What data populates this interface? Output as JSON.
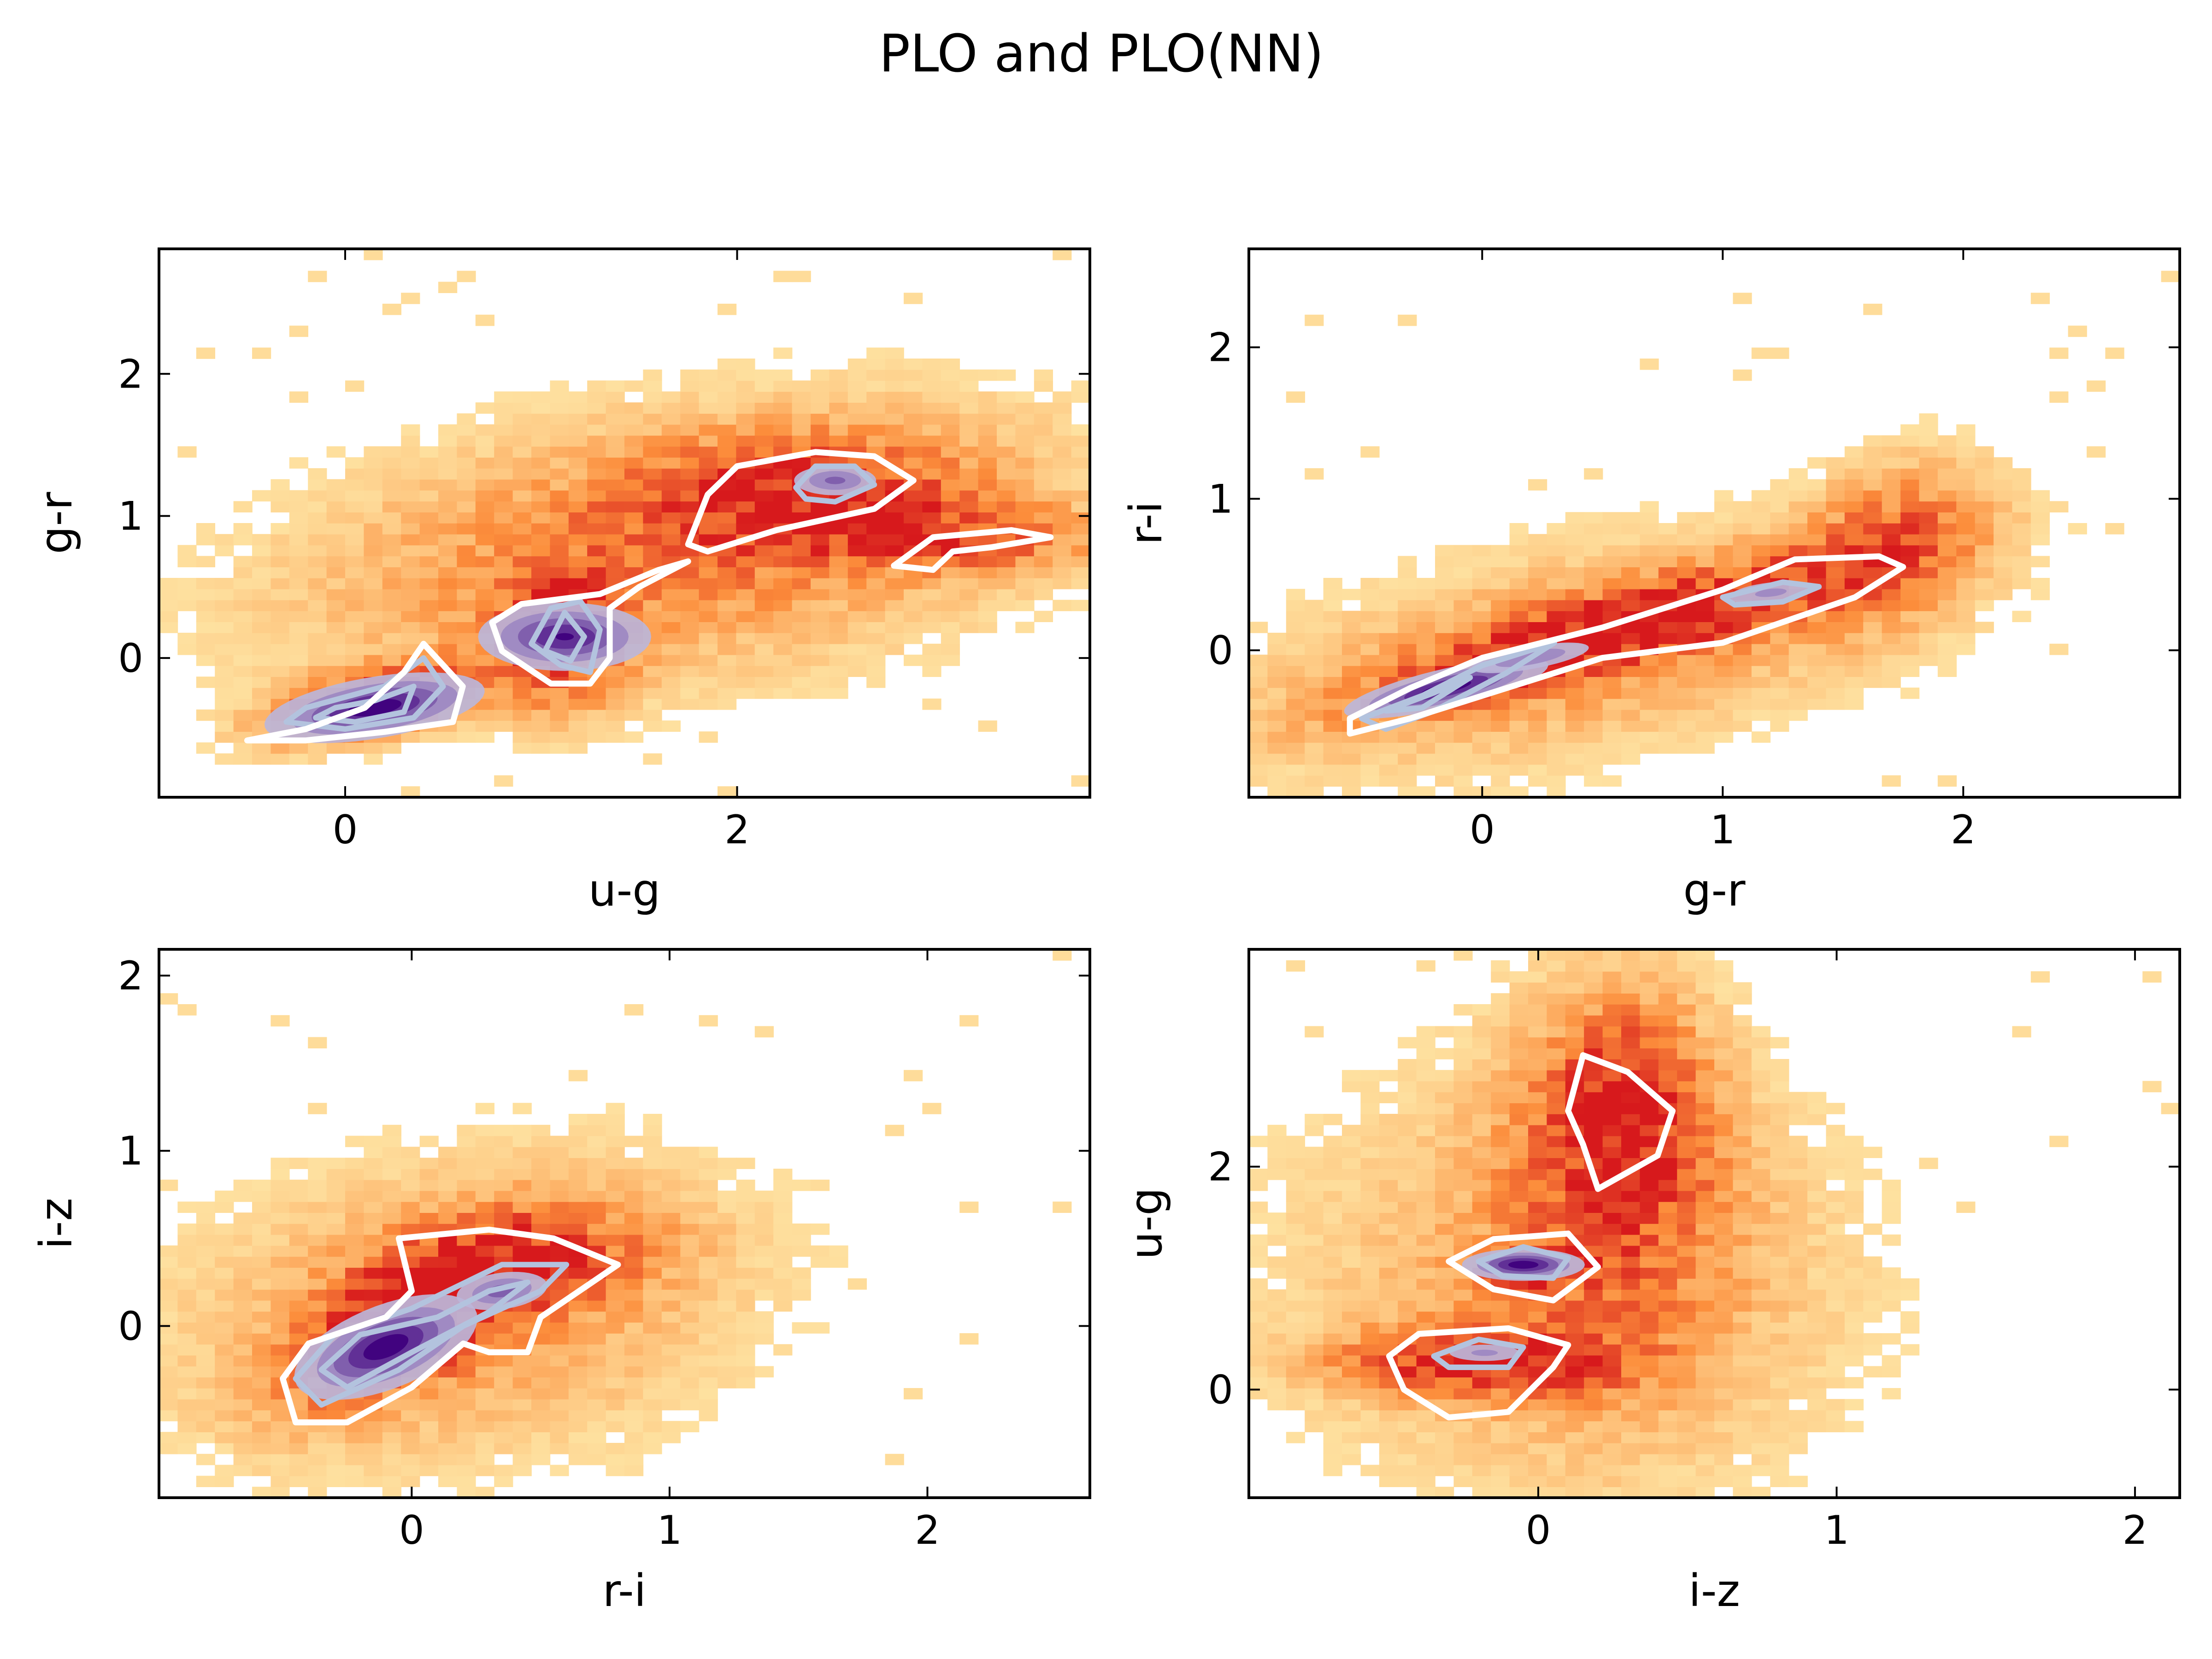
{
  "title": "PLO and PLO(NN)",
  "colors": {
    "histogram_low": "#fff5b8",
    "histogram_mid": "#fc8d3b",
    "histogram_high": "#d7191c",
    "density_fill_low": "#dbe3f0",
    "density_fill_high": "#3f007d",
    "contour_outer": "#ffffff",
    "contour_inner": "#b3c3de"
  },
  "chart_data": [
    {
      "type": "heatmap",
      "xlabel": "u-g",
      "ylabel": "g-r",
      "xlim": [
        -0.95,
        3.8
      ],
      "ylim": [
        -0.98,
        2.88
      ],
      "xticks": [
        0,
        2
      ],
      "yticks": [
        0,
        1,
        2
      ],
      "clusters": [
        {
          "x": 0.15,
          "y": -0.3,
          "sx": 0.35,
          "sy": 0.18,
          "rho": 0.55,
          "w": 0.9
        },
        {
          "x": 1.1,
          "y": 0.15,
          "sx": 0.2,
          "sy": 0.3,
          "rho": 0.0,
          "w": 0.9
        },
        {
          "x": 2.3,
          "y": 1.15,
          "sx": 0.5,
          "sy": 0.25,
          "rho": 0.1,
          "w": 0.8
        },
        {
          "x": 3.1,
          "y": 0.85,
          "sx": 0.45,
          "sy": 0.15,
          "rho": 0.0,
          "w": 0.6
        },
        {
          "x": 1.7,
          "y": 0.8,
          "sx": 1.2,
          "sy": 0.6,
          "rho": 0.35,
          "w": 0.45
        }
      ],
      "outer_contours": [
        [
          [
            -0.5,
            -0.58
          ],
          [
            -0.2,
            -0.5
          ],
          [
            0.1,
            -0.35
          ],
          [
            0.3,
            -0.1
          ],
          [
            0.4,
            0.1
          ],
          [
            0.6,
            -0.2
          ],
          [
            0.55,
            -0.45
          ],
          [
            0.2,
            -0.52
          ],
          [
            -0.2,
            -0.58
          ]
        ],
        [
          [
            0.75,
            0.25
          ],
          [
            0.9,
            0.38
          ],
          [
            1.3,
            0.45
          ],
          [
            1.6,
            0.62
          ],
          [
            1.75,
            0.68
          ],
          [
            1.5,
            0.5
          ],
          [
            1.35,
            0.35
          ],
          [
            1.35,
            0.0
          ],
          [
            1.25,
            -0.18
          ],
          [
            1.05,
            -0.18
          ],
          [
            0.8,
            0.05
          ]
        ],
        [
          [
            1.75,
            0.8
          ],
          [
            1.85,
            1.15
          ],
          [
            2.0,
            1.35
          ],
          [
            2.4,
            1.45
          ],
          [
            2.7,
            1.42
          ],
          [
            2.9,
            1.25
          ],
          [
            2.7,
            1.05
          ],
          [
            2.2,
            0.9
          ],
          [
            1.85,
            0.75
          ]
        ],
        [
          [
            2.8,
            0.65
          ],
          [
            3.0,
            0.85
          ],
          [
            3.4,
            0.9
          ],
          [
            3.6,
            0.85
          ],
          [
            3.3,
            0.78
          ],
          [
            3.1,
            0.75
          ],
          [
            3.0,
            0.62
          ]
        ]
      ],
      "inner_contours": [
        [
          [
            -0.3,
            -0.45
          ],
          [
            0.0,
            -0.5
          ],
          [
            0.35,
            -0.42
          ],
          [
            0.5,
            -0.2
          ],
          [
            0.4,
            0.0
          ],
          [
            0.2,
            -0.2
          ],
          [
            -0.2,
            -0.35
          ]
        ],
        [
          [
            -0.15,
            -0.42
          ],
          [
            0.05,
            -0.45
          ],
          [
            0.3,
            -0.38
          ],
          [
            0.35,
            -0.2
          ],
          [
            0.15,
            -0.3
          ],
          [
            -0.05,
            -0.35
          ]
        ],
        [
          [
            0.95,
            0.1
          ],
          [
            1.05,
            0.35
          ],
          [
            1.2,
            0.4
          ],
          [
            1.3,
            0.2
          ],
          [
            1.25,
            -0.1
          ],
          [
            1.1,
            -0.05
          ]
        ],
        [
          [
            1.02,
            0.05
          ],
          [
            1.12,
            0.32
          ],
          [
            1.22,
            0.15
          ],
          [
            1.15,
            -0.02
          ]
        ],
        [
          [
            2.3,
            1.2
          ],
          [
            2.4,
            1.35
          ],
          [
            2.6,
            1.35
          ],
          [
            2.7,
            1.22
          ],
          [
            2.5,
            1.1
          ],
          [
            2.35,
            1.12
          ]
        ]
      ],
      "density_cores": [
        {
          "x": 0.15,
          "y": -0.35,
          "sx": 0.28,
          "sy": 0.12,
          "rho": 0.5,
          "w": 1.0
        },
        {
          "x": 1.12,
          "y": 0.15,
          "sx": 0.12,
          "sy": 0.22,
          "rho": 0.0,
          "w": 0.9
        },
        {
          "x": 2.5,
          "y": 1.25,
          "sx": 0.12,
          "sy": 0.06,
          "rho": 0.0,
          "w": 0.55
        }
      ]
    },
    {
      "type": "heatmap",
      "xlabel": "g-r",
      "ylabel": "r-i",
      "xlim": [
        -0.97,
        2.9
      ],
      "ylim": [
        -0.97,
        2.65
      ],
      "xticks": [
        0,
        1,
        2
      ],
      "yticks": [
        0,
        1,
        2
      ],
      "clusters": [
        {
          "x": 0.6,
          "y": 0.15,
          "sx": 0.65,
          "sy": 0.32,
          "rho": 0.85,
          "w": 1.0
        },
        {
          "x": 1.7,
          "y": 0.7,
          "sx": 0.25,
          "sy": 0.35,
          "rho": 0.3,
          "w": 0.5
        },
        {
          "x": 0.4,
          "y": 0.0,
          "sx": 0.9,
          "sy": 0.5,
          "rho": 0.5,
          "w": 0.3
        }
      ],
      "outer_contours": [
        [
          [
            -0.55,
            -0.45
          ],
          [
            -0.3,
            -0.25
          ],
          [
            0.0,
            -0.05
          ],
          [
            0.5,
            0.15
          ],
          [
            1.0,
            0.4
          ],
          [
            1.3,
            0.6
          ],
          [
            1.65,
            0.62
          ],
          [
            1.75,
            0.55
          ],
          [
            1.55,
            0.35
          ],
          [
            1.0,
            0.05
          ],
          [
            0.5,
            -0.05
          ],
          [
            0.1,
            -0.25
          ],
          [
            -0.3,
            -0.45
          ],
          [
            -0.55,
            -0.55
          ]
        ]
      ],
      "inner_contours": [
        [
          [
            -0.5,
            -0.45
          ],
          [
            -0.25,
            -0.3
          ],
          [
            0.0,
            -0.1
          ],
          [
            0.3,
            0.05
          ],
          [
            0.1,
            -0.15
          ],
          [
            -0.2,
            -0.4
          ],
          [
            -0.4,
            -0.52
          ]
        ],
        [
          [
            1.0,
            0.35
          ],
          [
            1.25,
            0.45
          ],
          [
            1.4,
            0.42
          ],
          [
            1.25,
            0.32
          ],
          [
            1.05,
            0.3
          ]
        ],
        [
          [
            -0.4,
            -0.4
          ],
          [
            -0.2,
            -0.28
          ],
          [
            -0.05,
            -0.18
          ],
          [
            -0.25,
            -0.38
          ]
        ]
      ],
      "density_cores": [
        {
          "x": -0.15,
          "y": -0.25,
          "sx": 0.22,
          "sy": 0.1,
          "rho": 0.8,
          "w": 1.0
        },
        {
          "x": 0.2,
          "y": -0.05,
          "sx": 0.15,
          "sy": 0.06,
          "rho": 0.7,
          "w": 0.5
        },
        {
          "x": 1.2,
          "y": 0.38,
          "sx": 0.12,
          "sy": 0.05,
          "rho": 0.4,
          "w": 0.35
        }
      ]
    },
    {
      "type": "heatmap",
      "xlabel": "r-i",
      "ylabel": "i-z",
      "xlim": [
        -0.98,
        2.63
      ],
      "ylim": [
        -0.98,
        2.15
      ],
      "xticks": [
        0,
        1,
        2
      ],
      "yticks": [
        0,
        1,
        2
      ],
      "clusters": [
        {
          "x": 0.0,
          "y": 0.05,
          "sx": 0.3,
          "sy": 0.3,
          "rho": 0.65,
          "w": 1.0
        },
        {
          "x": 0.4,
          "y": 0.35,
          "sx": 0.35,
          "sy": 0.2,
          "rho": 0.3,
          "w": 0.6
        },
        {
          "x": 0.2,
          "y": 0.1,
          "sx": 0.7,
          "sy": 0.55,
          "rho": 0.2,
          "w": 0.3
        }
      ],
      "outer_contours": [
        [
          [
            -0.5,
            -0.3
          ],
          [
            -0.4,
            -0.1
          ],
          [
            -0.1,
            0.05
          ],
          [
            0.0,
            0.2
          ],
          [
            -0.05,
            0.5
          ],
          [
            0.3,
            0.55
          ],
          [
            0.55,
            0.5
          ],
          [
            0.8,
            0.35
          ],
          [
            0.6,
            0.15
          ],
          [
            0.5,
            0.05
          ],
          [
            0.45,
            -0.15
          ],
          [
            0.3,
            -0.15
          ],
          [
            0.2,
            -0.1
          ],
          [
            0.0,
            -0.35
          ],
          [
            -0.25,
            -0.55
          ],
          [
            -0.45,
            -0.55
          ]
        ]
      ],
      "inner_contours": [
        [
          [
            -0.45,
            -0.3
          ],
          [
            -0.3,
            -0.05
          ],
          [
            0.0,
            0.1
          ],
          [
            0.35,
            0.35
          ],
          [
            0.6,
            0.35
          ],
          [
            0.5,
            0.2
          ],
          [
            0.2,
            0.0
          ],
          [
            -0.05,
            -0.25
          ],
          [
            -0.35,
            -0.45
          ]
        ],
        [
          [
            -0.35,
            -0.25
          ],
          [
            -0.2,
            -0.05
          ],
          [
            0.1,
            0.05
          ],
          [
            0.3,
            0.2
          ],
          [
            0.45,
            0.25
          ],
          [
            0.3,
            0.08
          ],
          [
            0.0,
            -0.15
          ],
          [
            -0.25,
            -0.35
          ]
        ]
      ],
      "density_cores": [
        {
          "x": -0.1,
          "y": -0.12,
          "sx": 0.2,
          "sy": 0.16,
          "rho": 0.75,
          "w": 1.0
        },
        {
          "x": 0.35,
          "y": 0.2,
          "sx": 0.1,
          "sy": 0.06,
          "rho": 0.3,
          "w": 0.6
        }
      ]
    },
    {
      "type": "heatmap",
      "xlabel": "i-z",
      "ylabel": "u-g",
      "xlim": [
        -0.97,
        2.15
      ],
      "ylim": [
        -0.97,
        3.95
      ],
      "xticks": [
        0,
        1,
        2
      ],
      "yticks": [
        0,
        2
      ],
      "clusters": [
        {
          "x": 0.3,
          "y": 2.5,
          "sx": 0.15,
          "sy": 0.55,
          "rho": 0.0,
          "w": 0.8
        },
        {
          "x": -0.2,
          "y": 0.25,
          "sx": 0.3,
          "sy": 0.2,
          "rho": 0.0,
          "w": 0.9
        },
        {
          "x": 0.0,
          "y": 1.1,
          "sx": 0.12,
          "sy": 0.12,
          "rho": 0.0,
          "w": 0.8
        },
        {
          "x": 0.25,
          "y": 1.8,
          "sx": 0.25,
          "sy": 1.1,
          "rho": 0.0,
          "w": 0.45
        },
        {
          "x": 0.1,
          "y": 1.0,
          "sx": 0.6,
          "sy": 1.2,
          "rho": 0.0,
          "w": 0.25
        }
      ],
      "outer_contours": [
        [
          [
            0.1,
            2.5
          ],
          [
            0.15,
            3.0
          ],
          [
            0.3,
            2.85
          ],
          [
            0.45,
            2.5
          ],
          [
            0.4,
            2.1
          ],
          [
            0.2,
            1.8
          ],
          [
            0.15,
            2.2
          ]
        ],
        [
          [
            -0.3,
            1.15
          ],
          [
            -0.15,
            1.35
          ],
          [
            0.1,
            1.4
          ],
          [
            0.2,
            1.1
          ],
          [
            0.05,
            0.8
          ],
          [
            -0.15,
            0.9
          ]
        ],
        [
          [
            -0.5,
            0.3
          ],
          [
            -0.4,
            0.5
          ],
          [
            -0.1,
            0.55
          ],
          [
            0.1,
            0.4
          ],
          [
            0.05,
            0.2
          ],
          [
            -0.1,
            -0.2
          ],
          [
            -0.3,
            -0.25
          ],
          [
            -0.45,
            0.0
          ]
        ]
      ],
      "inner_contours": [
        [
          [
            -0.2,
            1.15
          ],
          [
            -0.05,
            1.28
          ],
          [
            0.1,
            1.18
          ],
          [
            0.05,
            1.0
          ],
          [
            -0.12,
            1.02
          ]
        ],
        [
          [
            -0.35,
            0.3
          ],
          [
            -0.2,
            0.45
          ],
          [
            -0.05,
            0.38
          ],
          [
            -0.1,
            0.2
          ],
          [
            -0.3,
            0.2
          ]
        ]
      ],
      "density_cores": [
        {
          "x": -0.05,
          "y": 1.12,
          "sx": 0.1,
          "sy": 0.07,
          "rho": 0.0,
          "w": 1.0
        },
        {
          "x": -0.18,
          "y": 0.33,
          "sx": 0.08,
          "sy": 0.05,
          "rho": 0.0,
          "w": 0.35
        }
      ]
    }
  ]
}
